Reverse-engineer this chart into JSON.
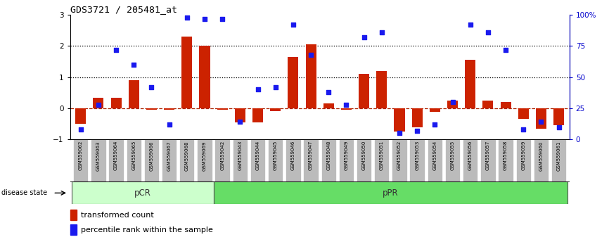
{
  "title": "GDS3721 / 205481_at",
  "samples": [
    "GSM559062",
    "GSM559063",
    "GSM559064",
    "GSM559065",
    "GSM559066",
    "GSM559067",
    "GSM559068",
    "GSM559069",
    "GSM559042",
    "GSM559043",
    "GSM559044",
    "GSM559045",
    "GSM559046",
    "GSM559047",
    "GSM559048",
    "GSM559049",
    "GSM559050",
    "GSM559051",
    "GSM559052",
    "GSM559053",
    "GSM559054",
    "GSM559055",
    "GSM559056",
    "GSM559057",
    "GSM559058",
    "GSM559059",
    "GSM559060",
    "GSM559061"
  ],
  "transformed_count": [
    -0.5,
    0.35,
    0.35,
    0.9,
    -0.05,
    -0.05,
    2.3,
    2.0,
    -0.05,
    -0.45,
    -0.45,
    -0.1,
    1.65,
    2.05,
    0.15,
    -0.05,
    1.1,
    1.2,
    -0.75,
    -0.6,
    -0.12,
    0.25,
    1.55,
    0.25,
    0.2,
    -0.35,
    -0.65,
    -0.55
  ],
  "percentile_rank": [
    8,
    28,
    72,
    60,
    42,
    12,
    98,
    97,
    97,
    14,
    40,
    42,
    92,
    68,
    38,
    28,
    82,
    86,
    5,
    7,
    12,
    30,
    92,
    86,
    72,
    8,
    14,
    10
  ],
  "pCR_count": 8,
  "pPR_count": 20,
  "bar_color": "#cc2200",
  "dot_color": "#1a1aee",
  "dashed_line_color": "#aa2200",
  "pCR_color_light": "#ccffcc",
  "pPR_color_light": "#66dd66",
  "tick_bg_color": "#bbbbbb",
  "ylim": [
    -1,
    3
  ],
  "y2lim": [
    0,
    100
  ],
  "yticks": [
    -1,
    0,
    1,
    2,
    3
  ],
  "y2ticks": [
    0,
    25,
    50,
    75,
    100
  ],
  "dotted_lines": [
    1.0,
    2.0
  ]
}
